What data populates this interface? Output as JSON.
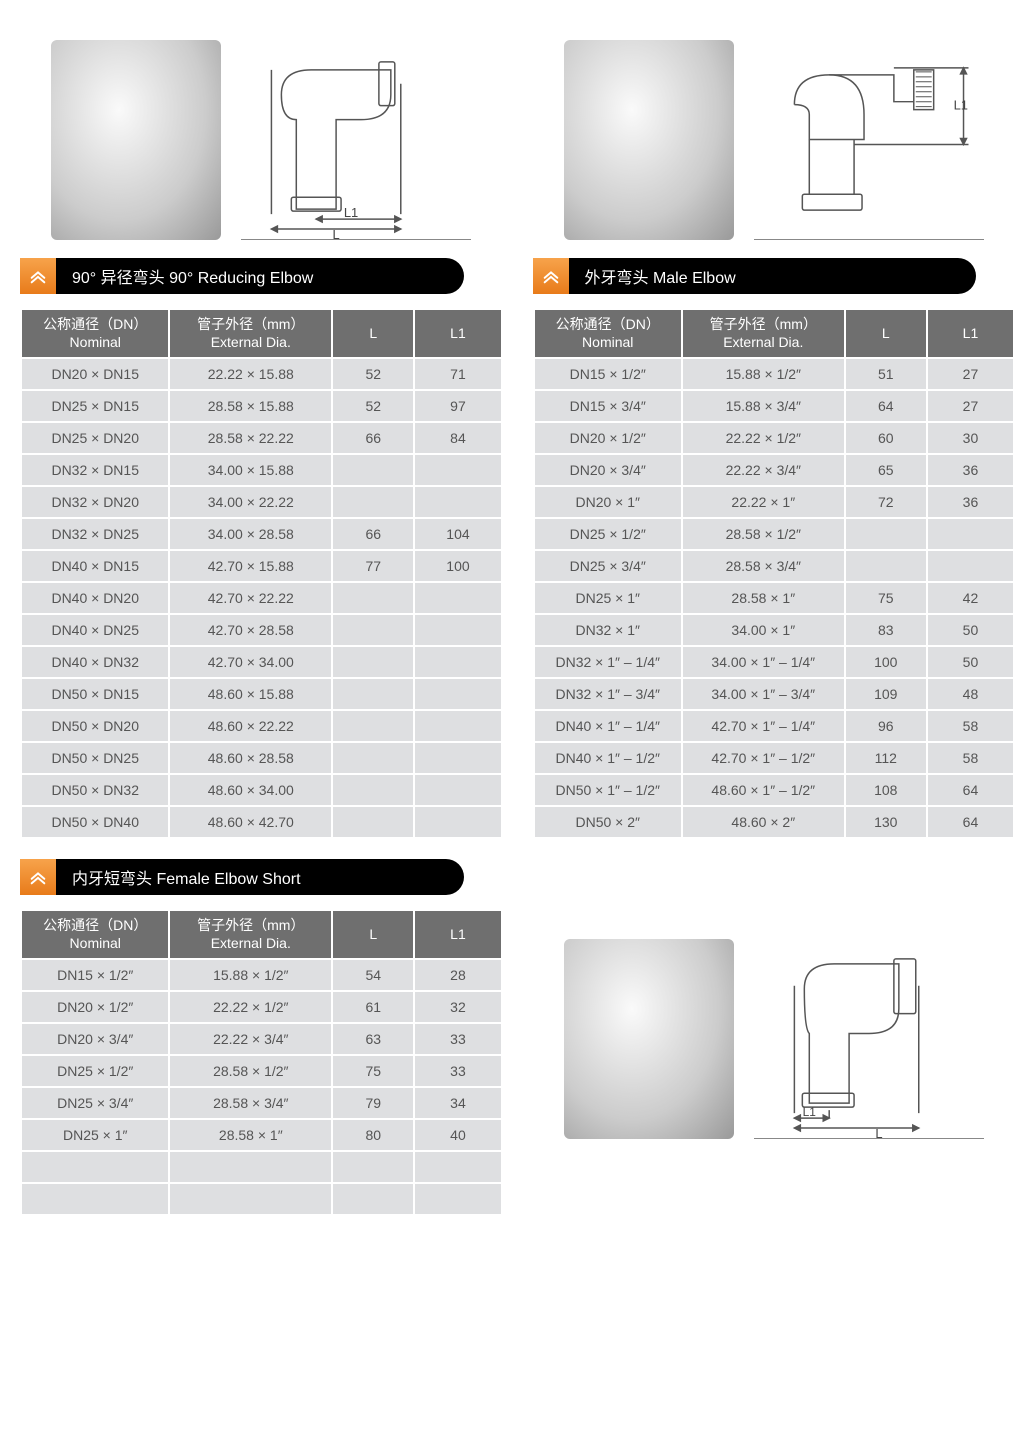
{
  "headers": {
    "nominal_zh": "公称通径（DN）",
    "nominal_en": "Nominal",
    "dia_zh": "管子外径（mm）",
    "dia_en": "External Dia.",
    "L": "L",
    "L1": "L1"
  },
  "colors": {
    "title_bg": "#000000",
    "title_fg": "#ffffff",
    "chevron_bg_top": "#f7a34b",
    "chevron_bg_bottom": "#e87b1a",
    "th_bg": "#6f6f6f",
    "th_fg": "#ffffff",
    "td_bg": "#dedfe1",
    "td_fg": "#555555",
    "diagram_stroke": "#555555"
  },
  "sections": [
    {
      "key": "reducing",
      "title": "90° 异径弯头  90° Reducing Elbow",
      "diagram_labels": {
        "L": "L",
        "L1": "L1"
      },
      "columns": [
        "nominal",
        "dia",
        "L",
        "L1"
      ],
      "rows": [
        [
          "DN20 × DN15",
          "22.22 × 15.88",
          "52",
          "71"
        ],
        [
          "DN25 × DN15",
          "28.58 × 15.88",
          "52",
          "97"
        ],
        [
          "DN25 × DN20",
          "28.58 × 22.22",
          "66",
          "84"
        ],
        [
          "DN32 × DN15",
          "34.00 × 15.88",
          "",
          ""
        ],
        [
          "DN32 × DN20",
          "34.00 × 22.22",
          "",
          ""
        ],
        [
          "DN32 × DN25",
          "34.00 × 28.58",
          "66",
          "104"
        ],
        [
          "DN40 × DN15",
          "42.70 × 15.88",
          "77",
          "100"
        ],
        [
          "DN40 × DN20",
          "42.70 × 22.22",
          "",
          ""
        ],
        [
          "DN40 × DN25",
          "42.70 × 28.58",
          "",
          ""
        ],
        [
          "DN40 × DN32",
          "42.70 × 34.00",
          "",
          ""
        ],
        [
          "DN50 × DN15",
          "48.60 × 15.88",
          "",
          ""
        ],
        [
          "DN50 × DN20",
          "48.60 × 22.22",
          "",
          ""
        ],
        [
          "DN50 × DN25",
          "48.60 × 28.58",
          "",
          ""
        ],
        [
          "DN50 × DN32",
          "48.60 × 34.00",
          "",
          ""
        ],
        [
          "DN50 × DN40",
          "48.60 × 42.70",
          "",
          ""
        ]
      ]
    },
    {
      "key": "male",
      "title": "外牙弯头 Male Elbow",
      "diagram_labels": {
        "L1": "L1"
      },
      "columns": [
        "nominal",
        "dia",
        "L",
        "L1"
      ],
      "rows": [
        [
          "DN15 × 1/2″",
          "15.88 × 1/2″",
          "51",
          "27"
        ],
        [
          "DN15 × 3/4″",
          "15.88 × 3/4″",
          "64",
          "27"
        ],
        [
          "DN20 × 1/2″",
          "22.22 × 1/2″",
          "60",
          "30"
        ],
        [
          "DN20 × 3/4″",
          "22.22 × 3/4″",
          "65",
          "36"
        ],
        [
          "DN20 × 1″",
          "22.22 × 1″",
          "72",
          "36"
        ],
        [
          "DN25 × 1/2″",
          "28.58 × 1/2″",
          "",
          ""
        ],
        [
          "DN25 × 3/4″",
          "28.58 × 3/4″",
          "",
          ""
        ],
        [
          "DN25 × 1″",
          "28.58 × 1″",
          "75",
          "42"
        ],
        [
          "DN32 × 1″",
          "34.00 × 1″",
          "83",
          "50"
        ],
        [
          "DN32 × 1″ – 1/4″",
          "34.00 × 1″ – 1/4″",
          "100",
          "50"
        ],
        [
          "DN32 × 1″ – 3/4″",
          "34.00 × 1″ – 3/4″",
          "109",
          "48"
        ],
        [
          "DN40 × 1″ – 1/4″",
          "42.70 × 1″ – 1/4″",
          "96",
          "58"
        ],
        [
          "DN40 × 1″ – 1/2″",
          "42.70 × 1″ – 1/2″",
          "112",
          "58"
        ],
        [
          "DN50 × 1″ – 1/2″",
          "48.60 × 1″ – 1/2″",
          "108",
          "64"
        ],
        [
          "DN50 × 2″",
          "48.60 × 2″",
          "130",
          "64"
        ]
      ]
    },
    {
      "key": "female",
      "title": "内牙短弯头 Female Elbow Short",
      "diagram_labels": {
        "L": "L",
        "L1": "L1"
      },
      "columns": [
        "nominal",
        "dia",
        "L",
        "L1"
      ],
      "rows": [
        [
          "DN15 × 1/2″",
          "15.88 × 1/2″",
          "54",
          "28"
        ],
        [
          "DN20 × 1/2″",
          "22.22 × 1/2″",
          "61",
          "32"
        ],
        [
          "DN20 × 3/4″",
          "22.22 × 3/4″",
          "63",
          "33"
        ],
        [
          "DN25 × 1/2″",
          "28.58 × 1/2″",
          "75",
          "33"
        ],
        [
          "DN25 × 3/4″",
          "28.58 × 3/4″",
          "79",
          "34"
        ],
        [
          "DN25 × 1″",
          "28.58 × 1″",
          "80",
          "40"
        ],
        [
          "",
          "",
          "",
          ""
        ],
        [
          "",
          "",
          "",
          ""
        ]
      ]
    }
  ]
}
